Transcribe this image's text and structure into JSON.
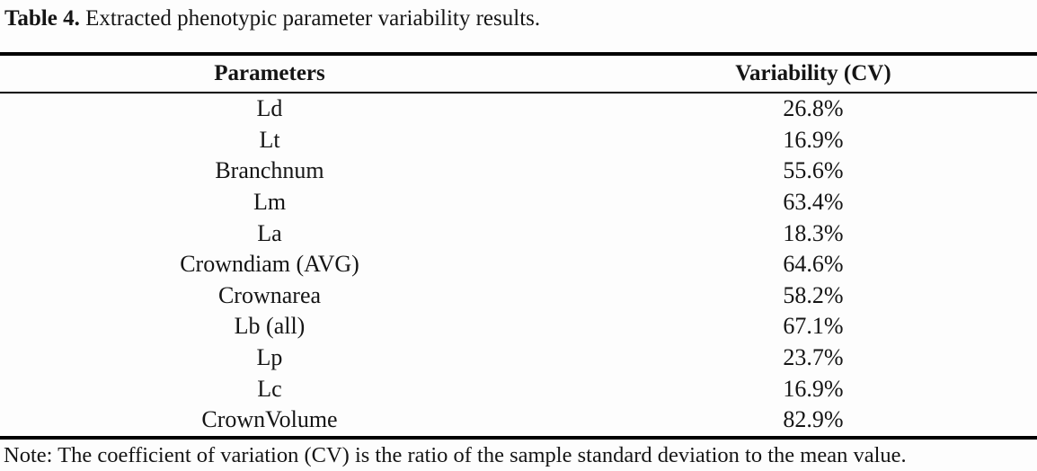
{
  "caption": {
    "label": "Table 4.",
    "text": " Extracted phenotypic parameter variability results."
  },
  "table": {
    "columns": [
      "Parameters",
      "Variability (CV)"
    ],
    "rows": [
      {
        "parameter": "Ld",
        "cv": "26.8%"
      },
      {
        "parameter": "Lt",
        "cv": "16.9%"
      },
      {
        "parameter": "Branchnum",
        "cv": "55.6%"
      },
      {
        "parameter": "Lm",
        "cv": "63.4%"
      },
      {
        "parameter": "La",
        "cv": "18.3%"
      },
      {
        "parameter": "Crowndiam (AVG)",
        "cv": "64.6%"
      },
      {
        "parameter": "Crownarea",
        "cv": "58.2%"
      },
      {
        "parameter": "Lb (all)",
        "cv": "67.1%"
      },
      {
        "parameter": "Lp",
        "cv": "23.7%"
      },
      {
        "parameter": "Lc",
        "cv": "16.9%"
      },
      {
        "parameter": "CrownVolume",
        "cv": "82.9%"
      }
    ]
  },
  "note": "Note: The coefficient of variation (CV) is the ratio of the sample standard deviation to the mean value.",
  "colors": {
    "text": "#151515",
    "rule": "#000000",
    "background": "#fdfdfd"
  }
}
